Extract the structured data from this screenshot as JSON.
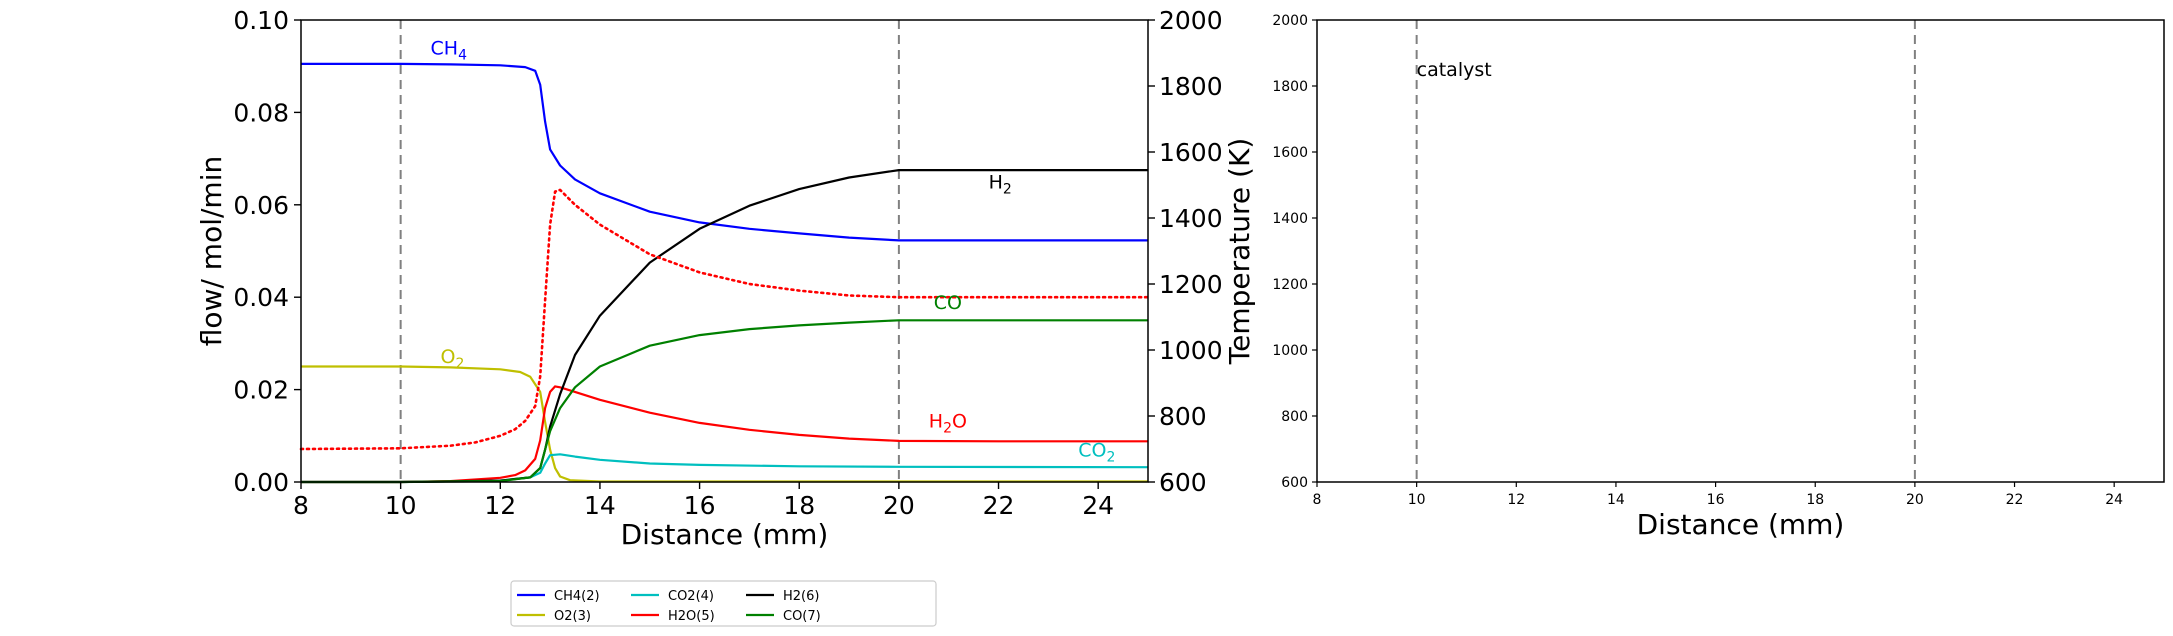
{
  "chart_data": [
    {
      "type": "line",
      "xlabel": "Distance (mm)",
      "ylabel": "flow/ mol/min",
      "y2label": "Temperature (K)",
      "xlim": [
        8,
        25
      ],
      "ylim": [
        0,
        0.1
      ],
      "y2lim": [
        600,
        2000
      ],
      "xticks": [
        "8",
        "10",
        "12",
        "14",
        "16",
        "18",
        "20",
        "22",
        "24"
      ],
      "yticks": [
        "0.00",
        "0.02",
        "0.04",
        "0.06",
        "0.08",
        "0.10"
      ],
      "y2ticks": [
        "600",
        "800",
        "1000",
        "1200",
        "1400",
        "1600",
        "1800",
        "2000"
      ],
      "vlines": [
        10,
        20
      ],
      "series": [
        {
          "name": "CH4(2)",
          "color": "#0000ff",
          "x": [
            8,
            10,
            11,
            12,
            12.5,
            12.7,
            12.8,
            12.9,
            13.0,
            13.2,
            13.5,
            14,
            15,
            16,
            17,
            18,
            19,
            20,
            22,
            25
          ],
          "y": [
            0.0905,
            0.0905,
            0.0904,
            0.0902,
            0.0898,
            0.089,
            0.086,
            0.078,
            0.072,
            0.0685,
            0.0655,
            0.0625,
            0.0585,
            0.0562,
            0.0548,
            0.0538,
            0.0529,
            0.0523,
            0.0523,
            0.0523
          ]
        },
        {
          "name": "O2(3)",
          "color": "#bfbf00",
          "x": [
            8,
            10,
            11,
            12,
            12.4,
            12.6,
            12.8,
            12.9,
            13.0,
            13.1,
            13.2,
            13.4,
            14,
            25
          ],
          "y": [
            0.025,
            0.025,
            0.0248,
            0.0244,
            0.0238,
            0.0228,
            0.0195,
            0.013,
            0.007,
            0.003,
            0.0012,
            0.0004,
            0.0001,
            0.0001
          ]
        },
        {
          "name": "CO2(4)",
          "color": "#00bfbf",
          "x": [
            8,
            10,
            12,
            12.6,
            12.8,
            12.9,
            13.0,
            13.2,
            13.5,
            14,
            15,
            16,
            18,
            20,
            25
          ],
          "y": [
            0,
            0,
            0.0003,
            0.001,
            0.002,
            0.004,
            0.0058,
            0.006,
            0.0055,
            0.0048,
            0.004,
            0.0037,
            0.0034,
            0.0033,
            0.0032
          ]
        },
        {
          "name": "H2O(5)",
          "color": "#ff0000",
          "x": [
            8,
            10,
            11,
            12,
            12.3,
            12.5,
            12.7,
            12.8,
            12.9,
            13.0,
            13.1,
            13.2,
            13.5,
            14,
            15,
            16,
            17,
            18,
            19,
            20,
            22,
            25
          ],
          "y": [
            0,
            0,
            0.0002,
            0.0009,
            0.0015,
            0.0025,
            0.005,
            0.009,
            0.016,
            0.0195,
            0.0207,
            0.0205,
            0.0195,
            0.0178,
            0.015,
            0.0128,
            0.0113,
            0.0102,
            0.0094,
            0.0089,
            0.0088,
            0.0088
          ]
        },
        {
          "name": "H2(6)",
          "color": "#000000",
          "x": [
            8,
            10,
            12,
            12.6,
            12.8,
            12.9,
            13.0,
            13.2,
            13.5,
            14,
            15,
            16,
            17,
            18,
            19,
            20,
            22,
            25
          ],
          "y": [
            0,
            0,
            0.0003,
            0.001,
            0.003,
            0.007,
            0.012,
            0.019,
            0.0275,
            0.036,
            0.0475,
            0.0548,
            0.0598,
            0.0634,
            0.0659,
            0.0675,
            0.0675,
            0.0675
          ]
        },
        {
          "name": "CO(7)",
          "color": "#008000",
          "x": [
            8,
            10,
            12,
            12.6,
            12.8,
            12.9,
            13.0,
            13.2,
            13.5,
            14,
            15,
            16,
            17,
            18,
            19,
            20,
            22,
            25
          ],
          "y": [
            0,
            0,
            0.0002,
            0.001,
            0.003,
            0.007,
            0.011,
            0.016,
            0.0205,
            0.025,
            0.0295,
            0.0318,
            0.0331,
            0.0339,
            0.0345,
            0.035,
            0.035,
            0.035
          ]
        },
        {
          "name": "T",
          "axis": "right",
          "color": "#ff0000",
          "dashed": true,
          "x": [
            8,
            10,
            11,
            11.5,
            12,
            12.3,
            12.5,
            12.7,
            12.8,
            12.9,
            13.0,
            13.1,
            13.2,
            13.3,
            13.5,
            14,
            15,
            16,
            17,
            18,
            19,
            20,
            22,
            25
          ],
          "y": [
            700,
            702,
            710,
            720,
            740,
            760,
            785,
            830,
            920,
            1150,
            1380,
            1480,
            1485,
            1470,
            1440,
            1380,
            1290,
            1235,
            1200,
            1180,
            1165,
            1160,
            1160,
            1160
          ]
        }
      ],
      "annotations": [
        {
          "text": "CH",
          "sub": "4",
          "x": 10.6,
          "y": 0.0925,
          "color": "#0000ff"
        },
        {
          "text": "O",
          "sub": "2",
          "x": 10.8,
          "y": 0.0258,
          "color": "#bfbf00"
        },
        {
          "text": "H",
          "sub": "2",
          "x": 21.8,
          "y": 0.0635,
          "color": "#000000"
        },
        {
          "text": "CO",
          "sub": "",
          "x": 20.7,
          "y": 0.0375,
          "color": "#008000"
        },
        {
          "text": "H",
          "sub": "2",
          "text2": "O",
          "x": 20.6,
          "y": 0.0118,
          "color": "#ff0000"
        },
        {
          "text": "CO",
          "sub": "2",
          "x": 23.6,
          "y": 0.0055,
          "color": "#00bfbf"
        }
      ],
      "legend": {
        "placement": "bottom-center",
        "entries": [
          {
            "label": "CH4(2)",
            "color": "#0000ff"
          },
          {
            "label": "O2(3)",
            "color": "#bfbf00"
          },
          {
            "label": "CO2(4)",
            "color": "#00bfbf"
          },
          {
            "label": "H2O(5)",
            "color": "#ff0000"
          },
          {
            "label": "H2(6)",
            "color": "#000000"
          },
          {
            "label": "CO(7)",
            "color": "#008000"
          }
        ]
      }
    },
    {
      "type": "line",
      "xlabel": "Distance (mm)",
      "ylabel": "",
      "xlim": [
        8,
        25
      ],
      "ylim": [
        600,
        2000
      ],
      "xticks": [
        "8",
        "10",
        "12",
        "14",
        "16",
        "18",
        "20",
        "22",
        "24"
      ],
      "yticks": [
        "600",
        "800",
        "1000",
        "1200",
        "1400",
        "1600",
        "1800",
        "2000"
      ],
      "vlines": [
        10,
        20
      ],
      "annotations": [
        {
          "text": "catalyst",
          "x": 10,
          "y": 1830,
          "color": "#000000"
        }
      ],
      "series": []
    }
  ]
}
